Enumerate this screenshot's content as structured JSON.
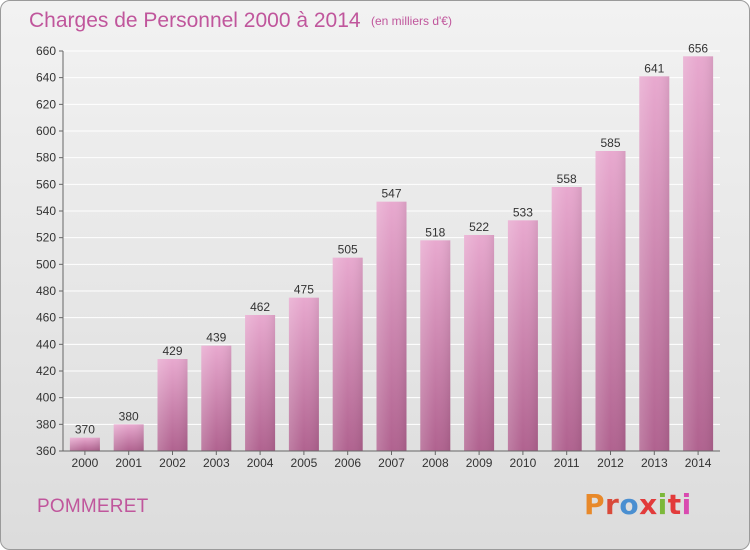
{
  "title": "Charges de Personnel 2000 à 2014",
  "subtitle": "(en milliers d'€)",
  "commune": "POMMERET",
  "logo": {
    "text": "Proxiti",
    "colors": [
      "#e8892a",
      "#d94a3a",
      "#4a8fd1",
      "#e23b3b",
      "#7cb83a",
      "#e23b3b",
      "#d94ab0"
    ]
  },
  "chart_data": {
    "type": "bar",
    "categories": [
      "2000",
      "2001",
      "2002",
      "2003",
      "2004",
      "2005",
      "2006",
      "2007",
      "2008",
      "2009",
      "2010",
      "2011",
      "2012",
      "2013",
      "2014"
    ],
    "values": [
      370,
      380,
      429,
      439,
      462,
      475,
      505,
      547,
      518,
      522,
      533,
      558,
      585,
      641,
      656
    ],
    "title": "Charges de Personnel 2000 à 2014",
    "subtitle": "(en milliers d'€)",
    "ylim": [
      360,
      660
    ],
    "yticks": [
      360,
      380,
      400,
      420,
      440,
      460,
      480,
      500,
      520,
      540,
      560,
      580,
      600,
      620,
      640,
      660
    ],
    "grid": true,
    "bar_color": "#d982b7",
    "data_labels": true
  }
}
